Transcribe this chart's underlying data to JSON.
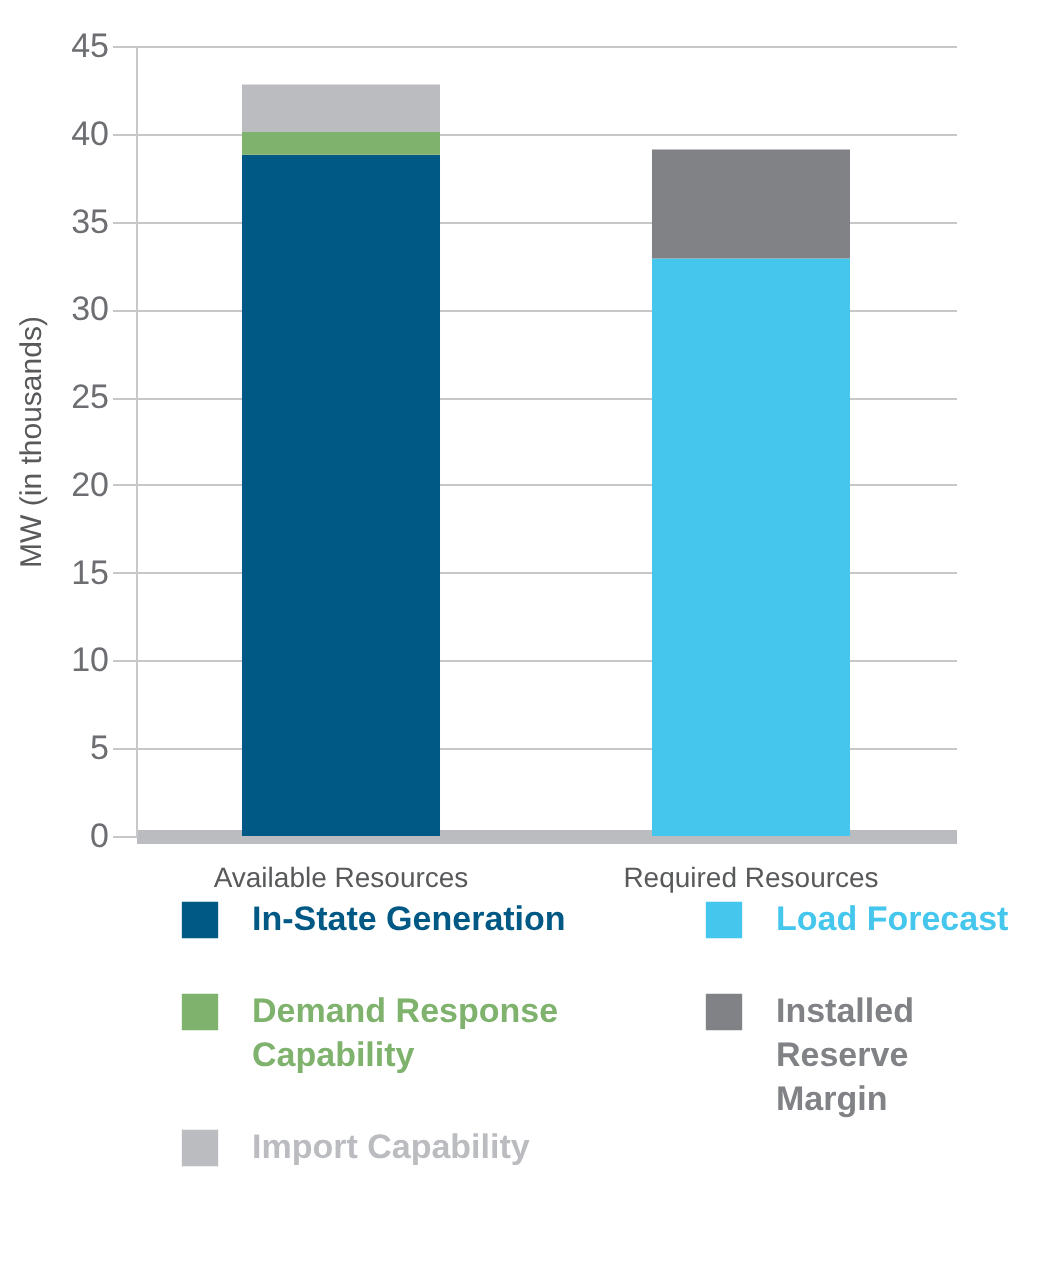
{
  "chart_data": {
    "type": "bar",
    "ylabel": "MW  (in thousands)",
    "categories": [
      "Available Resources",
      "Required Resources"
    ],
    "series": [
      {
        "name": "In-State Generation",
        "color": "#005984",
        "values": [
          38.8,
          null
        ]
      },
      {
        "name": "Demand Response Capability",
        "color": "#7fb26d",
        "values": [
          1.3,
          null
        ]
      },
      {
        "name": "Import Capability",
        "color": "#bbbcc0",
        "values": [
          2.7,
          null
        ]
      },
      {
        "name": "Load Forecast",
        "color": "#44c6ed",
        "values": [
          null,
          32.9
        ]
      },
      {
        "name": "Installed Reserve Margin",
        "color": "#818285",
        "values": [
          null,
          6.2
        ]
      }
    ],
    "stacked": true,
    "ylim": [
      0,
      45
    ],
    "yticks": [
      0,
      5,
      10,
      15,
      20,
      25,
      30,
      35,
      40,
      45
    ],
    "grid": "y",
    "legend": "bottom"
  }
}
